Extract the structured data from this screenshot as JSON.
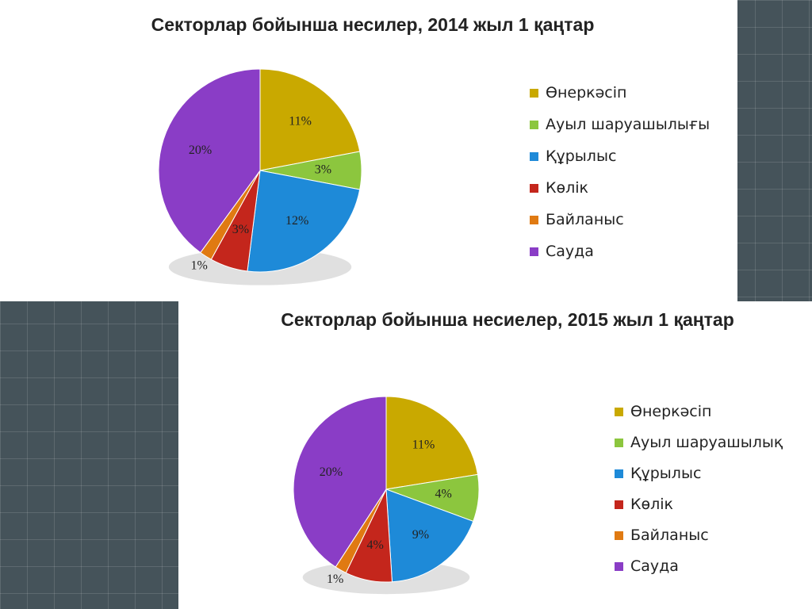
{
  "chart_data": [
    {
      "type": "pie",
      "title": "Секторлар бойынша несилер, 2014 жыл 1 қаңтар",
      "categories": [
        "Өнеркәсіп",
        "Ауыл шаруашылығы",
        "Құрылыс",
        "Көлік",
        "Байланыс",
        "Сауда"
      ],
      "values": [
        11,
        3,
        12,
        3,
        1,
        20
      ],
      "value_labels": [
        "11%",
        "3%",
        "12%",
        "3%",
        "1%",
        "20%"
      ],
      "colors": [
        "#c9a900",
        "#8cc63e",
        "#1e8ad8",
        "#c4261c",
        "#e07a12",
        "#8a3dc6"
      ]
    },
    {
      "type": "pie",
      "title": "Секторлар бойынша несиелер, 2015 жыл 1 қаңтар",
      "categories": [
        "Өнеркәсіп",
        "Ауыл шаруашылық",
        "Құрылыс",
        "Көлік",
        "Байланыс",
        "Сауда"
      ],
      "values": [
        11,
        4,
        9,
        4,
        1,
        20
      ],
      "value_labels": [
        "11%",
        "4%",
        "9%",
        "4%",
        "1%",
        "20%"
      ],
      "colors": [
        "#c9a900",
        "#8cc63e",
        "#1e8ad8",
        "#c4261c",
        "#e07a12",
        "#8a3dc6"
      ]
    }
  ]
}
